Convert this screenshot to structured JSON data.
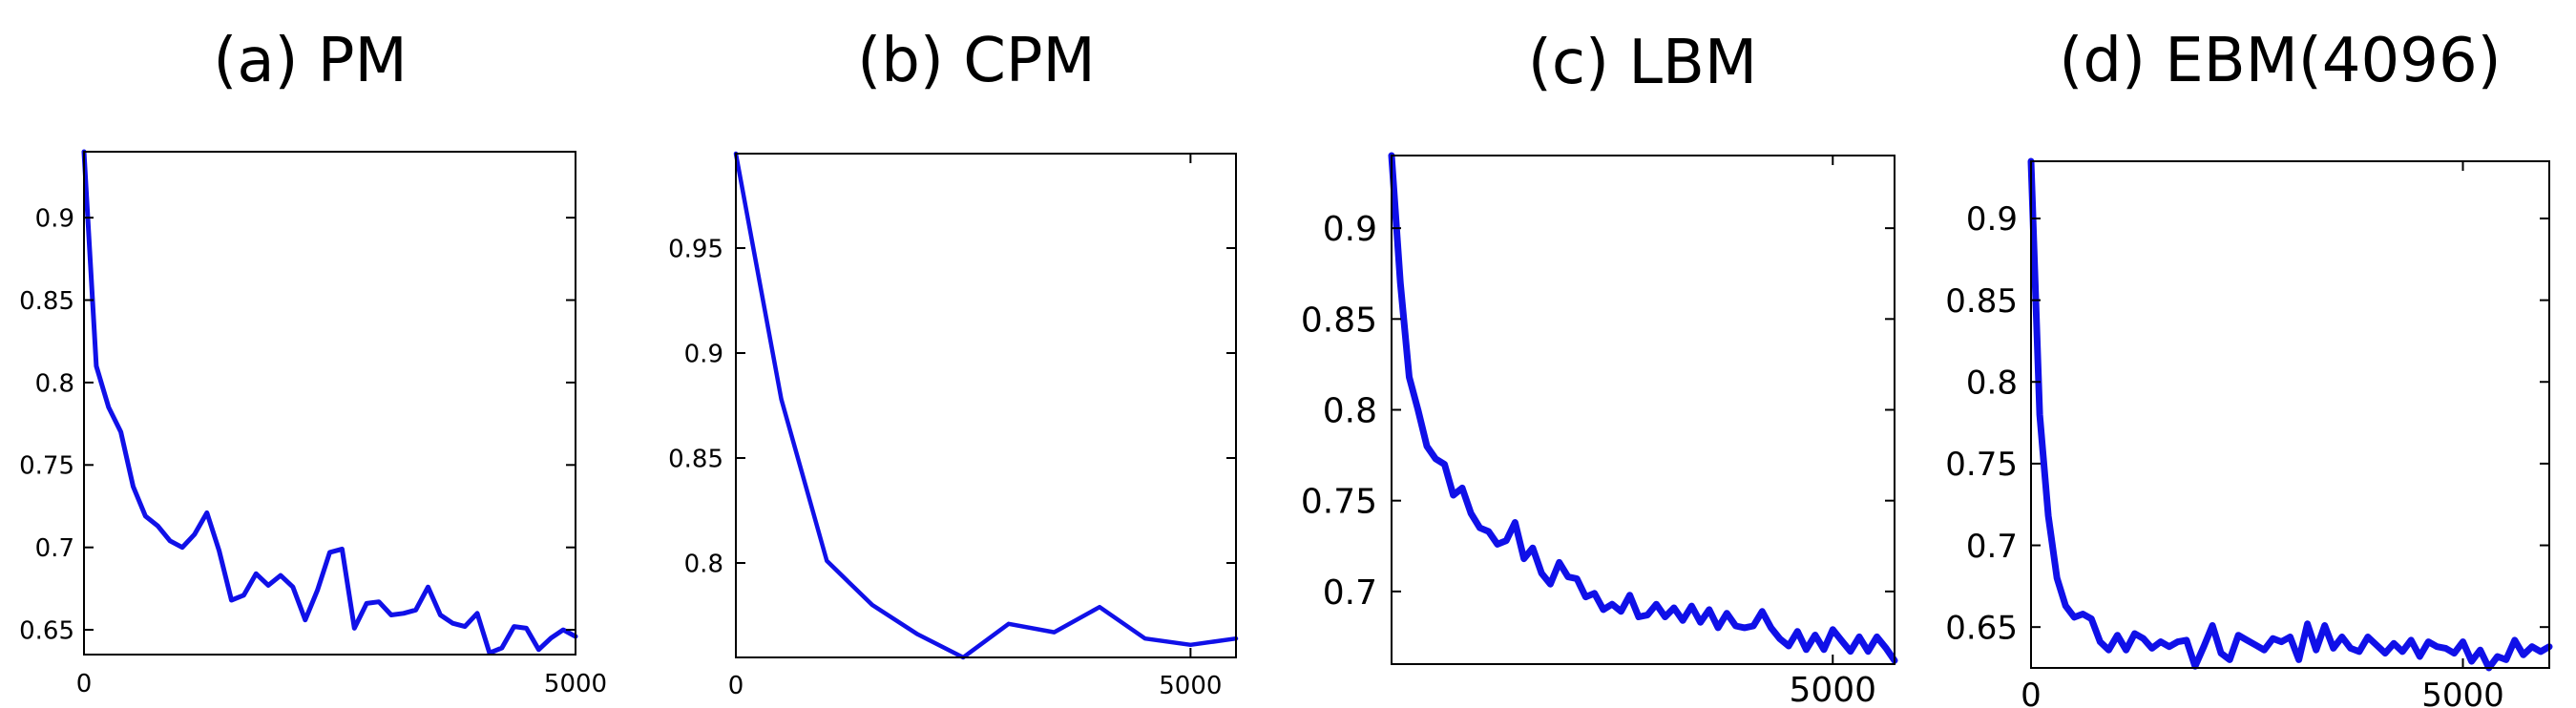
{
  "style": {
    "line_color": "#1010E8",
    "axis_color": "#000000",
    "background": "#FFFFFF"
  },
  "chart_data": [
    {
      "type": "line",
      "title": "(a) PM",
      "xlabel": "",
      "ylabel": "",
      "xlim": [
        0,
        5000
      ],
      "ylim": [
        0.635,
        0.94
      ],
      "grid": false,
      "xticks": [
        0,
        5000
      ],
      "xtick_labels": [
        "0",
        "5000"
      ],
      "yticks": [
        0.65,
        0.7,
        0.75,
        0.8,
        0.85,
        0.9
      ],
      "ytick_labels": [
        "0.65",
        "0.7",
        "0.75",
        "0.8",
        "0.85",
        "0.9"
      ],
      "x": [
        0,
        125,
        250,
        375,
        500,
        625,
        750,
        875,
        1000,
        1125,
        1250,
        1375,
        1500,
        1625,
        1750,
        1875,
        2000,
        2125,
        2250,
        2375,
        2500,
        2625,
        2750,
        2875,
        3000,
        3125,
        3250,
        3375,
        3500,
        3625,
        3750,
        3875,
        4000,
        4125,
        4250,
        4375,
        4500,
        4625,
        4750,
        4875,
        5000
      ],
      "y": [
        0.94,
        0.81,
        0.785,
        0.77,
        0.737,
        0.719,
        0.713,
        0.704,
        0.7,
        0.708,
        0.721,
        0.698,
        0.668,
        0.671,
        0.684,
        0.677,
        0.683,
        0.676,
        0.656,
        0.674,
        0.697,
        0.699,
        0.651,
        0.666,
        0.667,
        0.659,
        0.66,
        0.662,
        0.676,
        0.659,
        0.654,
        0.652,
        0.66,
        0.636,
        0.639,
        0.652,
        0.651,
        0.638,
        0.645,
        0.65,
        0.646
      ]
    },
    {
      "type": "line",
      "title": "(b) CPM",
      "xlabel": "",
      "ylabel": "",
      "xlim": [
        0,
        5500
      ],
      "ylim": [
        0.755,
        0.995
      ],
      "grid": false,
      "xticks": [
        0,
        5000
      ],
      "xtick_labels": [
        "0",
        "5000"
      ],
      "yticks": [
        0.8,
        0.85,
        0.9,
        0.95
      ],
      "ytick_labels": [
        "0.8",
        "0.85",
        "0.9",
        "0.95"
      ],
      "x": [
        0,
        500,
        1000,
        1500,
        2000,
        2500,
        3000,
        3500,
        4000,
        4500,
        5000,
        5500
      ],
      "y": [
        0.995,
        0.878,
        0.801,
        0.78,
        0.766,
        0.755,
        0.771,
        0.767,
        0.779,
        0.764,
        0.761,
        0.764
      ]
    },
    {
      "type": "line",
      "title": "(c) LBM",
      "xlabel": "",
      "ylabel": "",
      "xlim": [
        0,
        5700
      ],
      "ylim": [
        0.66,
        0.94
      ],
      "grid": false,
      "xticks": [
        5000
      ],
      "xtick_labels": [
        "5000"
      ],
      "yticks": [
        0.7,
        0.75,
        0.8,
        0.85,
        0.9
      ],
      "ytick_labels": [
        "0.7",
        "0.75",
        "0.8",
        "0.85",
        "0.9"
      ],
      "x": [
        0,
        100,
        200,
        300,
        400,
        500,
        600,
        700,
        800,
        900,
        1000,
        1100,
        1200,
        1300,
        1400,
        1500,
        1600,
        1700,
        1800,
        1900,
        2000,
        2100,
        2200,
        2300,
        2400,
        2500,
        2600,
        2700,
        2800,
        2900,
        3000,
        3100,
        3200,
        3300,
        3400,
        3500,
        3600,
        3700,
        3800,
        3900,
        4000,
        4100,
        4200,
        4300,
        4400,
        4500,
        4600,
        4700,
        4800,
        4900,
        5000,
        5100,
        5200,
        5300,
        5400,
        5500,
        5600,
        5700
      ],
      "y": [
        0.94,
        0.87,
        0.818,
        0.8,
        0.78,
        0.773,
        0.77,
        0.753,
        0.757,
        0.743,
        0.735,
        0.733,
        0.726,
        0.728,
        0.738,
        0.718,
        0.724,
        0.71,
        0.704,
        0.716,
        0.708,
        0.707,
        0.697,
        0.699,
        0.69,
        0.693,
        0.689,
        0.698,
        0.686,
        0.687,
        0.693,
        0.686,
        0.691,
        0.684,
        0.692,
        0.683,
        0.69,
        0.68,
        0.688,
        0.681,
        0.68,
        0.681,
        0.689,
        0.68,
        0.674,
        0.67,
        0.678,
        0.668,
        0.676,
        0.668,
        0.679,
        0.673,
        0.667,
        0.675,
        0.667,
        0.675,
        0.669,
        0.662
      ]
    },
    {
      "type": "line",
      "title": "(d) EBM(4096)",
      "xlabel": "",
      "ylabel": "",
      "xlim": [
        0,
        6000
      ],
      "ylim": [
        0.625,
        0.935
      ],
      "grid": false,
      "xticks": [
        0,
        5000
      ],
      "xtick_labels": [
        "0",
        "5000"
      ],
      "yticks": [
        0.65,
        0.7,
        0.75,
        0.8,
        0.85,
        0.9
      ],
      "ytick_labels": [
        "0.65",
        "0.7",
        "0.75",
        "0.8",
        "0.85",
        "0.9"
      ],
      "x": [
        0,
        100,
        200,
        300,
        400,
        500,
        600,
        700,
        800,
        900,
        1000,
        1100,
        1200,
        1300,
        1400,
        1500,
        1600,
        1700,
        1800,
        1900,
        2000,
        2100,
        2200,
        2300,
        2400,
        2500,
        2600,
        2700,
        2800,
        2900,
        3000,
        3100,
        3200,
        3300,
        3400,
        3500,
        3600,
        3700,
        3800,
        3900,
        4000,
        4100,
        4200,
        4300,
        4400,
        4500,
        4600,
        4700,
        4800,
        4900,
        5000,
        5100,
        5200,
        5300,
        5400,
        5500,
        5600,
        5700,
        5800,
        5900,
        6000
      ],
      "y": [
        0.935,
        0.78,
        0.718,
        0.68,
        0.663,
        0.656,
        0.658,
        0.655,
        0.641,
        0.636,
        0.645,
        0.636,
        0.646,
        0.643,
        0.637,
        0.641,
        0.638,
        0.641,
        0.642,
        0.626,
        0.638,
        0.651,
        0.634,
        0.63,
        0.645,
        0.642,
        0.639,
        0.636,
        0.643,
        0.641,
        0.644,
        0.63,
        0.652,
        0.636,
        0.651,
        0.637,
        0.644,
        0.637,
        0.635,
        0.644,
        0.639,
        0.634,
        0.64,
        0.635,
        0.642,
        0.632,
        0.641,
        0.638,
        0.637,
        0.634,
        0.641,
        0.629,
        0.636,
        0.625,
        0.632,
        0.63,
        0.642,
        0.633,
        0.638,
        0.635,
        0.638
      ]
    }
  ]
}
